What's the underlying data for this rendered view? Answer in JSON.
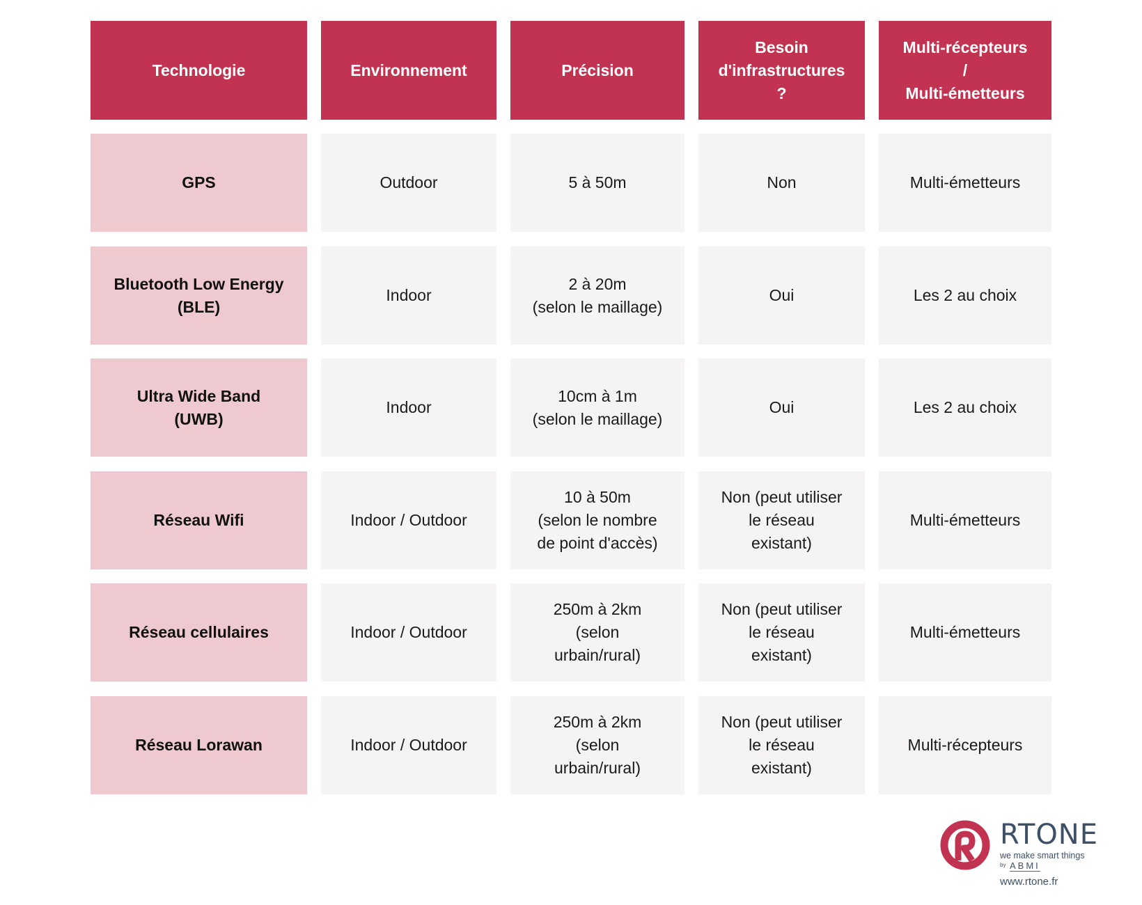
{
  "table": {
    "headers": [
      [
        "Technologie"
      ],
      [
        "Environnement"
      ],
      [
        "Précision"
      ],
      [
        "Besoin",
        "d'infrastructures",
        "?"
      ],
      [
        "Multi-récepteurs",
        "/",
        "Multi-émetteurs"
      ]
    ],
    "rows": [
      {
        "technologie": [
          "GPS"
        ],
        "environnement": [
          "Outdoor"
        ],
        "precision": [
          "5 à 50m"
        ],
        "infrastructure": [
          "Non"
        ],
        "multi": [
          "Multi-émetteurs"
        ]
      },
      {
        "technologie": [
          "Bluetooth Low Energy",
          "(BLE)"
        ],
        "environnement": [
          "Indoor"
        ],
        "precision": [
          "2 à 20m",
          "(selon le maillage)"
        ],
        "infrastructure": [
          "Oui"
        ],
        "multi": [
          "Les 2 au choix"
        ]
      },
      {
        "technologie": [
          "Ultra Wide Band",
          "(UWB)"
        ],
        "environnement": [
          "Indoor"
        ],
        "precision": [
          "10cm à 1m",
          "(selon le maillage)"
        ],
        "infrastructure": [
          "Oui"
        ],
        "multi": [
          "Les 2 au choix"
        ]
      },
      {
        "technologie": [
          "Réseau Wifi"
        ],
        "environnement": [
          "Indoor / Outdoor"
        ],
        "precision": [
          "10 à 50m",
          "(selon le nombre",
          "de point d'accès)"
        ],
        "infrastructure": [
          "Non (peut utiliser",
          "le réseau",
          "existant)"
        ],
        "multi": [
          "Multi-émetteurs"
        ]
      },
      {
        "technologie": [
          "Réseau cellulaires"
        ],
        "environnement": [
          "Indoor / Outdoor"
        ],
        "precision": [
          "250m à 2km",
          "(selon",
          "urbain/rural)"
        ],
        "infrastructure": [
          "Non (peut utiliser",
          "le réseau",
          "existant)"
        ],
        "multi": [
          "Multi-émetteurs"
        ]
      },
      {
        "technologie": [
          "Réseau Lorawan"
        ],
        "environnement": [
          "Indoor / Outdoor"
        ],
        "precision": [
          "250m à 2km",
          "(selon",
          "urbain/rural)"
        ],
        "infrastructure": [
          "Non (peut utiliser",
          "le réseau",
          "existant)"
        ],
        "multi": [
          "Multi-récepteurs"
        ]
      }
    ]
  },
  "logo": {
    "name": "RTONE",
    "tagline": "we make smart things",
    "by": "by",
    "parent": "ABMI",
    "url": "www.rtone.fr",
    "icon": "rtone-r-logo-icon"
  },
  "colors": {
    "header_bg": "#C13350",
    "tech_col_bg": "#EFC9D0",
    "cell_bg": "#F5F3F4",
    "logo_red": "#C13350",
    "logo_text": "#3D5066"
  }
}
